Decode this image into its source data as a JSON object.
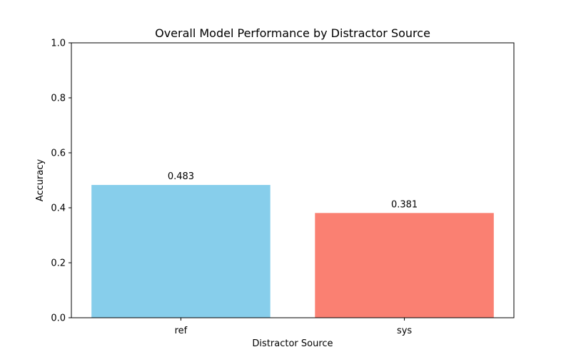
{
  "chart_data": {
    "type": "bar",
    "title": "Overall Model Performance by Distractor Source",
    "xlabel": "Distractor Source",
    "ylabel": "Accuracy",
    "categories": [
      "ref",
      "sys"
    ],
    "values": [
      0.483,
      0.381
    ],
    "value_labels": [
      "0.483",
      "0.381"
    ],
    "colors": [
      "#87CEEB",
      "#FA8072"
    ],
    "ylim": [
      0,
      1.0
    ],
    "yticks": [
      0.0,
      0.2,
      0.4,
      0.6,
      0.8,
      1.0
    ],
    "ytick_labels": [
      "0.0",
      "0.2",
      "0.4",
      "0.6",
      "0.8",
      "1.0"
    ],
    "grid": false,
    "legend": "none"
  }
}
